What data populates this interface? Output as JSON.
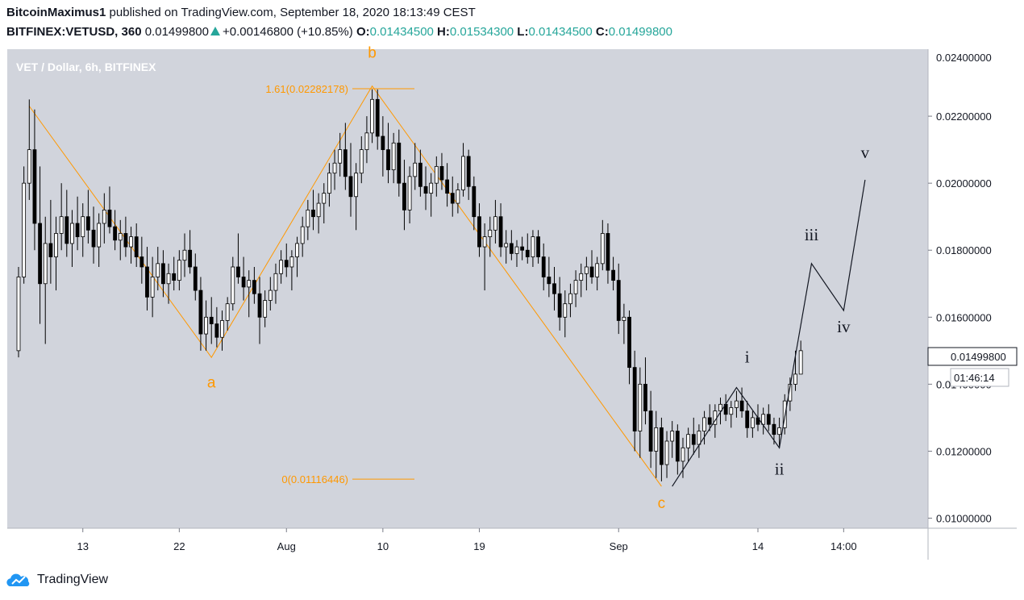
{
  "header": {
    "author": "BitcoinMaximus1",
    "published_text": "published on TradingView.com, September 18, 2020 18:13:49 CEST",
    "symbol": "BITFINEX:VETUSD, 360",
    "last": "0.01499800",
    "change": "+0.00146800 (+10.85%)",
    "o_label": "O:",
    "o_value": "0.01434500",
    "h_label": "H:",
    "h_value": "0.01534300",
    "l_label": "L:",
    "l_value": "0.01434500",
    "c_label": "C:",
    "c_value": "0.01499800"
  },
  "colors": {
    "plot_bg": "#d1d4dc",
    "orange": "#ff9800",
    "candle_up": "#ffffff",
    "candle_down": "#000000",
    "wave_line": "#131722",
    "axis_bg": "#ffffff"
  },
  "chart_data": {
    "type": "candlestick",
    "title": "VET / Dollar, 6h, BITFINEX",
    "currency": "USD",
    "ylim": [
      0.0097,
      0.024
    ],
    "y_ticks": [
      "0.02200000",
      "0.02000000",
      "0.01800000",
      "0.01600000",
      "0.01400000",
      "0.01200000",
      "0.01000000"
    ],
    "y_tick_values": [
      0.022,
      0.02,
      0.018,
      0.016,
      0.014,
      0.012,
      0.01
    ],
    "top_partial_tick": "0.02400000",
    "x_ticks": [
      {
        "label": "13",
        "date": "2020-07-13"
      },
      {
        "label": "22",
        "date": "2020-07-22"
      },
      {
        "label": "Aug",
        "date": "2020-08-01"
      },
      {
        "label": "10",
        "date": "2020-08-10"
      },
      {
        "label": "19",
        "date": "2020-08-19"
      },
      {
        "label": "Sep",
        "date": "2020-09-01"
      },
      {
        "label": "14",
        "date": "2020-09-14"
      },
      {
        "label": "14:00",
        "date": "2020-09-22"
      }
    ],
    "last_price_label": "0.01499800",
    "countdown": "01:46:14",
    "candles": [
      [
        "2020-07-07",
        0.015,
        0.0175,
        0.0148,
        0.0172
      ],
      [
        "2020-07-07T12:00",
        0.0172,
        0.0205,
        0.017,
        0.02
      ],
      [
        "2020-07-08",
        0.02,
        0.0225,
        0.0195,
        0.021
      ],
      [
        "2020-07-08T12:00",
        0.021,
        0.0222,
        0.018,
        0.0188
      ],
      [
        "2020-07-09",
        0.0188,
        0.0205,
        0.0158,
        0.017
      ],
      [
        "2020-07-09T12:00",
        0.017,
        0.019,
        0.0152,
        0.0182
      ],
      [
        "2020-07-10",
        0.0182,
        0.0195,
        0.017,
        0.0178
      ],
      [
        "2020-07-10T12:00",
        0.0178,
        0.019,
        0.0168,
        0.0185
      ],
      [
        "2020-07-11",
        0.0185,
        0.02,
        0.018,
        0.019
      ],
      [
        "2020-07-11T12:00",
        0.019,
        0.0198,
        0.0178,
        0.0182
      ],
      [
        "2020-07-12",
        0.0182,
        0.0192,
        0.0175,
        0.0188
      ],
      [
        "2020-07-12T12:00",
        0.0188,
        0.0196,
        0.018,
        0.0184
      ],
      [
        "2020-07-13",
        0.0184,
        0.0194,
        0.0178,
        0.019
      ],
      [
        "2020-07-13T12:00",
        0.019,
        0.0198,
        0.0182,
        0.0186
      ],
      [
        "2020-07-14",
        0.0186,
        0.0193,
        0.0176,
        0.0181
      ],
      [
        "2020-07-14T12:00",
        0.0181,
        0.0191,
        0.0175,
        0.0188
      ],
      [
        "2020-07-15",
        0.0188,
        0.0197,
        0.0182,
        0.0192
      ],
      [
        "2020-07-15T12:00",
        0.0192,
        0.0199,
        0.0185,
        0.0187
      ],
      [
        "2020-07-16",
        0.0187,
        0.0192,
        0.018,
        0.0183
      ],
      [
        "2020-07-16T12:00",
        0.0183,
        0.0189,
        0.0177,
        0.0185
      ],
      [
        "2020-07-17",
        0.0185,
        0.019,
        0.0178,
        0.0181
      ],
      [
        "2020-07-17T12:00",
        0.0181,
        0.0187,
        0.0176,
        0.0184
      ],
      [
        "2020-07-18",
        0.0184,
        0.0188,
        0.0175,
        0.0178
      ],
      [
        "2020-07-18T12:00",
        0.0178,
        0.0184,
        0.017,
        0.0175
      ],
      [
        "2020-07-19",
        0.0175,
        0.0181,
        0.0162,
        0.0166
      ],
      [
        "2020-07-19T12:00",
        0.0166,
        0.0178,
        0.016,
        0.0172
      ],
      [
        "2020-07-20",
        0.0172,
        0.0181,
        0.0168,
        0.0176
      ],
      [
        "2020-07-20T12:00",
        0.0176,
        0.018,
        0.0166,
        0.017
      ],
      [
        "2020-07-21",
        0.017,
        0.0176,
        0.0164,
        0.0173
      ],
      [
        "2020-07-21T12:00",
        0.0173,
        0.0178,
        0.0168,
        0.0171
      ],
      [
        "2020-07-22",
        0.0171,
        0.018,
        0.0168,
        0.0177
      ],
      [
        "2020-07-22T12:00",
        0.0177,
        0.0185,
        0.0172,
        0.018
      ],
      [
        "2020-07-23",
        0.018,
        0.0186,
        0.0173,
        0.0175
      ],
      [
        "2020-07-23T12:00",
        0.0175,
        0.0179,
        0.0165,
        0.0168
      ],
      [
        "2020-07-24",
        0.0168,
        0.0172,
        0.015,
        0.0155
      ],
      [
        "2020-07-24T12:00",
        0.0155,
        0.0165,
        0.015,
        0.016
      ],
      [
        "2020-07-25",
        0.016,
        0.0166,
        0.0152,
        0.0158
      ],
      [
        "2020-07-25T12:00",
        0.0158,
        0.0163,
        0.0151,
        0.0154
      ],
      [
        "2020-07-26",
        0.0154,
        0.0162,
        0.015,
        0.0159
      ],
      [
        "2020-07-26T12:00",
        0.0159,
        0.0166,
        0.0156,
        0.0164
      ],
      [
        "2020-07-27",
        0.0164,
        0.0178,
        0.0162,
        0.0175
      ],
      [
        "2020-07-27T12:00",
        0.0175,
        0.0185,
        0.017,
        0.0172
      ],
      [
        "2020-07-28",
        0.0172,
        0.0178,
        0.0165,
        0.0169
      ],
      [
        "2020-07-28T12:00",
        0.0169,
        0.0174,
        0.016,
        0.0171
      ],
      [
        "2020-07-29",
        0.0171,
        0.0175,
        0.0164,
        0.0167
      ],
      [
        "2020-07-29T12:00",
        0.0167,
        0.0172,
        0.0152,
        0.016
      ],
      [
        "2020-07-30",
        0.016,
        0.0168,
        0.0157,
        0.0165
      ],
      [
        "2020-07-30T12:00",
        0.0165,
        0.0172,
        0.0162,
        0.0168
      ],
      [
        "2020-07-31",
        0.0168,
        0.0176,
        0.0164,
        0.0173
      ],
      [
        "2020-07-31T12:00",
        0.0173,
        0.018,
        0.017,
        0.0177
      ],
      [
        "2020-08-01",
        0.0177,
        0.0182,
        0.0172,
        0.0175
      ],
      [
        "2020-08-01T12:00",
        0.0175,
        0.018,
        0.0168,
        0.0178
      ],
      [
        "2020-08-02",
        0.0178,
        0.0184,
        0.0172,
        0.0182
      ],
      [
        "2020-08-02T12:00",
        0.0182,
        0.019,
        0.0178,
        0.0187
      ],
      [
        "2020-08-03",
        0.0187,
        0.0195,
        0.0183,
        0.0192
      ],
      [
        "2020-08-03T12:00",
        0.0192,
        0.0198,
        0.0186,
        0.019
      ],
      [
        "2020-08-04",
        0.019,
        0.0197,
        0.0185,
        0.0194
      ],
      [
        "2020-08-04T12:00",
        0.0194,
        0.02,
        0.0188,
        0.0197
      ],
      [
        "2020-08-05",
        0.0197,
        0.0206,
        0.0193,
        0.0203
      ],
      [
        "2020-08-05T12:00",
        0.0203,
        0.021,
        0.0198,
        0.0206
      ],
      [
        "2020-08-06",
        0.0206,
        0.0215,
        0.0202,
        0.021
      ],
      [
        "2020-08-06T12:00",
        0.021,
        0.0218,
        0.0198,
        0.0202
      ],
      [
        "2020-08-07",
        0.0202,
        0.0212,
        0.019,
        0.0196
      ],
      [
        "2020-08-07T12:00",
        0.0196,
        0.0206,
        0.0186,
        0.0203
      ],
      [
        "2020-08-08",
        0.0203,
        0.0214,
        0.02,
        0.021
      ],
      [
        "2020-08-08T12:00",
        0.021,
        0.022,
        0.0206,
        0.0215
      ],
      [
        "2020-08-09",
        0.0215,
        0.0228,
        0.0212,
        0.0225
      ],
      [
        "2020-08-09T12:00",
        0.0225,
        0.0228,
        0.021,
        0.0214
      ],
      [
        "2020-08-10",
        0.0214,
        0.022,
        0.0202,
        0.021
      ],
      [
        "2020-08-10T12:00",
        0.021,
        0.0218,
        0.02,
        0.0204
      ],
      [
        "2020-08-11",
        0.0204,
        0.0215,
        0.02,
        0.0212
      ],
      [
        "2020-08-11T12:00",
        0.0212,
        0.0216,
        0.0196,
        0.02
      ],
      [
        "2020-08-12",
        0.02,
        0.0207,
        0.0186,
        0.0192
      ],
      [
        "2020-08-12T12:00",
        0.0192,
        0.0205,
        0.0188,
        0.0202
      ],
      [
        "2020-08-13",
        0.0202,
        0.0212,
        0.0198,
        0.0206
      ],
      [
        "2020-08-13T12:00",
        0.0206,
        0.021,
        0.0196,
        0.0199
      ],
      [
        "2020-08-14",
        0.0199,
        0.0205,
        0.0192,
        0.0197
      ],
      [
        "2020-08-14T12:00",
        0.0197,
        0.0203,
        0.019,
        0.02
      ],
      [
        "2020-08-15",
        0.02,
        0.0208,
        0.0196,
        0.0205
      ],
      [
        "2020-08-15T12:00",
        0.0205,
        0.0209,
        0.0198,
        0.0201
      ],
      [
        "2020-08-16",
        0.0201,
        0.0206,
        0.0193,
        0.0197
      ],
      [
        "2020-08-16T12:00",
        0.0197,
        0.0202,
        0.019,
        0.0194
      ],
      [
        "2020-08-17",
        0.0194,
        0.02,
        0.0191,
        0.0198
      ],
      [
        "2020-08-17T12:00",
        0.0198,
        0.0212,
        0.0196,
        0.0208
      ],
      [
        "2020-08-18",
        0.0208,
        0.021,
        0.0195,
        0.0199
      ],
      [
        "2020-08-18T12:00",
        0.0199,
        0.0202,
        0.0186,
        0.019
      ],
      [
        "2020-08-19",
        0.019,
        0.0194,
        0.0178,
        0.0181
      ],
      [
        "2020-08-19T12:00",
        0.0181,
        0.0188,
        0.0168,
        0.0184
      ],
      [
        "2020-08-20",
        0.0184,
        0.019,
        0.0178,
        0.0186
      ],
      [
        "2020-08-20T12:00",
        0.0186,
        0.0195,
        0.0182,
        0.019
      ],
      [
        "2020-08-21",
        0.019,
        0.0194,
        0.0178,
        0.0181
      ],
      [
        "2020-08-21T12:00",
        0.0181,
        0.0186,
        0.0176,
        0.0182
      ],
      [
        "2020-08-22",
        0.0182,
        0.0186,
        0.0177,
        0.0179
      ],
      [
        "2020-08-22T12:00",
        0.0179,
        0.0183,
        0.0175,
        0.0181
      ],
      [
        "2020-08-23",
        0.0181,
        0.0184,
        0.0177,
        0.018
      ],
      [
        "2020-08-23T12:00",
        0.018,
        0.0185,
        0.0176,
        0.0178
      ],
      [
        "2020-08-24",
        0.0178,
        0.0186,
        0.0175,
        0.0184
      ],
      [
        "2020-08-24T12:00",
        0.0184,
        0.0186,
        0.0176,
        0.0178
      ],
      [
        "2020-08-25",
        0.0178,
        0.0182,
        0.0168,
        0.0172
      ],
      [
        "2020-08-25T12:00",
        0.0172,
        0.0178,
        0.0166,
        0.017
      ],
      [
        "2020-08-26",
        0.017,
        0.0175,
        0.0162,
        0.0167
      ],
      [
        "2020-08-26T12:00",
        0.0167,
        0.0172,
        0.0156,
        0.016
      ],
      [
        "2020-08-27",
        0.016,
        0.0168,
        0.0154,
        0.0164
      ],
      [
        "2020-08-27T12:00",
        0.0164,
        0.017,
        0.016,
        0.0167
      ],
      [
        "2020-08-28",
        0.0167,
        0.0174,
        0.0163,
        0.0171
      ],
      [
        "2020-08-28T12:00",
        0.0171,
        0.0176,
        0.0166,
        0.0173
      ],
      [
        "2020-08-29",
        0.0173,
        0.0178,
        0.0168,
        0.0175
      ],
      [
        "2020-08-29T12:00",
        0.0175,
        0.018,
        0.017,
        0.0172
      ],
      [
        "2020-08-30",
        0.0172,
        0.0178,
        0.0168,
        0.0176
      ],
      [
        "2020-08-30T12:00",
        0.0176,
        0.0189,
        0.0174,
        0.0185
      ],
      [
        "2020-08-31",
        0.0185,
        0.0188,
        0.017,
        0.0174
      ],
      [
        "2020-08-31T12:00",
        0.0174,
        0.0178,
        0.0168,
        0.0171
      ],
      [
        "2020-09-01",
        0.0171,
        0.0176,
        0.0155,
        0.0159
      ],
      [
        "2020-09-01T12:00",
        0.0159,
        0.0164,
        0.0152,
        0.016
      ],
      [
        "2020-09-02",
        0.016,
        0.0162,
        0.014,
        0.0145
      ],
      [
        "2020-09-02T12:00",
        0.0145,
        0.015,
        0.012,
        0.0126
      ],
      [
        "2020-09-03",
        0.0126,
        0.0145,
        0.0118,
        0.014
      ],
      [
        "2020-09-03T12:00",
        0.014,
        0.0148,
        0.0128,
        0.0132
      ],
      [
        "2020-09-04",
        0.0132,
        0.0138,
        0.0115,
        0.012
      ],
      [
        "2020-09-04T12:00",
        0.012,
        0.0132,
        0.0112,
        0.0127
      ],
      [
        "2020-09-05",
        0.0127,
        0.013,
        0.0111,
        0.0116
      ],
      [
        "2020-09-05T12:00",
        0.0116,
        0.0126,
        0.0112,
        0.0123
      ],
      [
        "2020-09-06",
        0.0123,
        0.0129,
        0.0118,
        0.0126
      ],
      [
        "2020-09-06T12:00",
        0.0126,
        0.0128,
        0.0113,
        0.0117
      ],
      [
        "2020-09-07",
        0.0117,
        0.0124,
        0.0112,
        0.0121
      ],
      [
        "2020-09-07T12:00",
        0.0121,
        0.0127,
        0.0117,
        0.0125
      ],
      [
        "2020-09-08",
        0.0125,
        0.013,
        0.0119,
        0.0122
      ],
      [
        "2020-09-08T12:00",
        0.0122,
        0.0128,
        0.0118,
        0.0126
      ],
      [
        "2020-09-09",
        0.0126,
        0.0132,
        0.0122,
        0.013
      ],
      [
        "2020-09-09T12:00",
        0.013,
        0.0134,
        0.0126,
        0.0128
      ],
      [
        "2020-09-10",
        0.0128,
        0.0134,
        0.0124,
        0.0132
      ],
      [
        "2020-09-10T12:00",
        0.0132,
        0.0136,
        0.0128,
        0.0134
      ],
      [
        "2020-09-11",
        0.0134,
        0.0137,
        0.0129,
        0.0131
      ],
      [
        "2020-09-11T12:00",
        0.0131,
        0.0135,
        0.0127,
        0.0133
      ],
      [
        "2020-09-12",
        0.0133,
        0.0138,
        0.013,
        0.0135
      ],
      [
        "2020-09-12T12:00",
        0.0135,
        0.0139,
        0.013,
        0.0132
      ],
      [
        "2020-09-13",
        0.0132,
        0.0135,
        0.0124,
        0.0127
      ],
      [
        "2020-09-13T12:00",
        0.0127,
        0.0132,
        0.0124,
        0.013
      ],
      [
        "2020-09-14",
        0.013,
        0.0134,
        0.0126,
        0.0128
      ],
      [
        "2020-09-14T12:00",
        0.0128,
        0.0133,
        0.0125,
        0.0131
      ],
      [
        "2020-09-15",
        0.0131,
        0.0134,
        0.0126,
        0.0128
      ],
      [
        "2020-09-15T12:00",
        0.0128,
        0.013,
        0.0122,
        0.0125
      ],
      [
        "2020-09-16",
        0.0125,
        0.013,
        0.0121,
        0.0127
      ],
      [
        "2020-09-16T12:00",
        0.0127,
        0.0137,
        0.0125,
        0.0135
      ],
      [
        "2020-09-17",
        0.0135,
        0.0142,
        0.0132,
        0.014
      ],
      [
        "2020-09-17T12:00",
        0.014,
        0.015,
        0.0138,
        0.0143
      ],
      [
        "2020-09-18",
        0.0143,
        0.0153,
        0.0143,
        0.015
      ]
    ],
    "fib_levels": [
      {
        "label": "1.61(0.02282178)",
        "value": 0.02282178
      },
      {
        "label": "0(0.01116446)",
        "value": 0.01116446
      }
    ],
    "abc_path": [
      {
        "date": "2020-07-08",
        "value": 0.0223
      },
      {
        "date": "2020-07-25",
        "value": 0.0148
      },
      {
        "date": "2020-08-09",
        "value": 0.0229
      },
      {
        "date": "2020-09-05",
        "value": 0.01095
      }
    ],
    "abc_labels": [
      {
        "text": "a",
        "date": "2020-07-25",
        "value": 0.0139
      },
      {
        "text": "b",
        "date": "2020-08-09",
        "value": 0.02375
      },
      {
        "text": "c",
        "date": "2020-09-05",
        "value": 0.0103
      }
    ],
    "wave_path": [
      {
        "date": "2020-09-06",
        "value": 0.01095
      },
      {
        "date": "2020-09-12",
        "value": 0.0139
      },
      {
        "date": "2020-09-16",
        "value": 0.0121
      },
      {
        "date": "2020-09-19",
        "value": 0.0176
      },
      {
        "date": "2020-09-22",
        "value": 0.0162
      },
      {
        "date": "2020-09-24",
        "value": 0.0201
      }
    ],
    "wave_labels": [
      {
        "text": "i",
        "date": "2020-09-13",
        "value": 0.01465
      },
      {
        "text": "ii",
        "date": "2020-09-16",
        "value": 0.0113
      },
      {
        "text": "iii",
        "date": "2020-09-19",
        "value": 0.0183
      },
      {
        "text": "iv",
        "date": "2020-09-22",
        "value": 0.01555
      },
      {
        "text": "v",
        "date": "2020-09-24",
        "value": 0.02075
      }
    ]
  },
  "footer": {
    "logo_icon": "tradingview-cloud-icon",
    "brand": "TradingView"
  }
}
